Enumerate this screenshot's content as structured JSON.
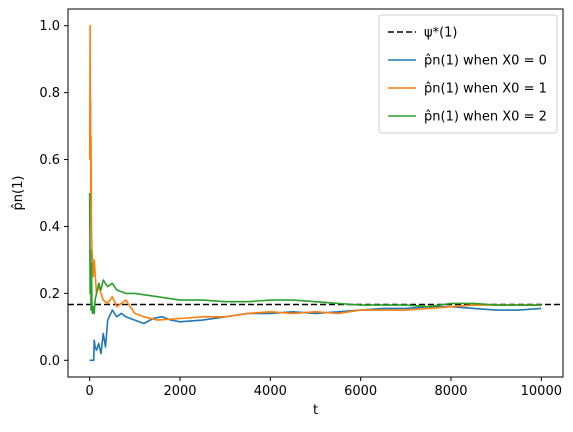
{
  "chart_data": {
    "type": "line",
    "xlabel": "t",
    "ylabel": "p̂n(1)",
    "xlim": [
      -480,
      10480
    ],
    "ylim": [
      -0.05,
      1.05
    ],
    "xticks": [
      0,
      2000,
      4000,
      6000,
      8000,
      10000
    ],
    "xtick_labels": [
      "0",
      "2000",
      "4000",
      "6000",
      "8000",
      "10000"
    ],
    "yticks": [
      0.0,
      0.2,
      0.4,
      0.6,
      0.8,
      1.0
    ],
    "ytick_labels": [
      "0.0",
      "0.2",
      "0.4",
      "0.6",
      "0.8",
      "1.0"
    ],
    "legend_position": "top-right",
    "reference_line": {
      "name": "ψ*(1)",
      "y": 0.1667,
      "color": "#000000",
      "style": "dashed"
    },
    "series": [
      {
        "name": "p̂n(1) when X0 = 0",
        "color": "#1f77b4",
        "x": [
          0,
          15,
          30,
          50,
          70,
          90,
          100,
          120,
          150,
          200,
          250,
          300,
          350,
          400,
          500,
          600,
          700,
          800,
          1000,
          1200,
          1400,
          1600,
          1800,
          2000,
          2500,
          3000,
          3500,
          4000,
          4500,
          5000,
          5500,
          6000,
          6500,
          7000,
          7500,
          8000,
          8500,
          9000,
          9500,
          10000
        ],
        "y": [
          0.0,
          0.0,
          0.0,
          0.0,
          0.0,
          0.0,
          0.06,
          0.04,
          0.03,
          0.05,
          0.02,
          0.08,
          0.04,
          0.12,
          0.15,
          0.13,
          0.14,
          0.13,
          0.12,
          0.11,
          0.125,
          0.13,
          0.12,
          0.115,
          0.12,
          0.13,
          0.14,
          0.14,
          0.145,
          0.14,
          0.145,
          0.15,
          0.155,
          0.155,
          0.16,
          0.16,
          0.155,
          0.15,
          0.15,
          0.155
        ]
      },
      {
        "name": "p̂n(1) when X0 = 1",
        "color": "#ff7f0e",
        "x": [
          0,
          10,
          15,
          20,
          25,
          30,
          40,
          50,
          60,
          80,
          100,
          120,
          150,
          200,
          250,
          300,
          400,
          500,
          600,
          800,
          1000,
          1200,
          1500,
          2000,
          2500,
          3000,
          3500,
          4000,
          4500,
          5000,
          5500,
          6000,
          6500,
          7000,
          7500,
          8000,
          8500,
          9000,
          9500,
          10000
        ],
        "y": [
          0.6,
          1.0,
          0.6,
          0.78,
          0.5,
          0.67,
          0.4,
          0.33,
          0.3,
          0.25,
          0.3,
          0.26,
          0.2,
          0.22,
          0.2,
          0.18,
          0.17,
          0.19,
          0.16,
          0.18,
          0.14,
          0.13,
          0.12,
          0.125,
          0.13,
          0.13,
          0.14,
          0.145,
          0.14,
          0.145,
          0.14,
          0.15,
          0.15,
          0.15,
          0.155,
          0.16,
          0.165,
          0.165,
          0.165,
          0.165
        ]
      },
      {
        "name": "p̂n(1) when X0 = 2",
        "color": "#2ca02c",
        "x": [
          0,
          10,
          20,
          30,
          40,
          50,
          60,
          80,
          100,
          120,
          150,
          200,
          250,
          300,
          400,
          500,
          600,
          800,
          1000,
          1500,
          2000,
          2500,
          3000,
          3500,
          4000,
          4500,
          5000,
          5500,
          6000,
          6500,
          7000,
          7500,
          8000,
          8500,
          9000,
          9500,
          10000
        ],
        "y": [
          0.5,
          0.2,
          0.33,
          0.15,
          0.29,
          0.18,
          0.14,
          0.16,
          0.14,
          0.18,
          0.2,
          0.23,
          0.21,
          0.24,
          0.22,
          0.23,
          0.21,
          0.2,
          0.2,
          0.19,
          0.18,
          0.18,
          0.175,
          0.175,
          0.18,
          0.18,
          0.175,
          0.17,
          0.165,
          0.165,
          0.165,
          0.16,
          0.17,
          0.17,
          0.165,
          0.165,
          0.165
        ]
      }
    ]
  }
}
